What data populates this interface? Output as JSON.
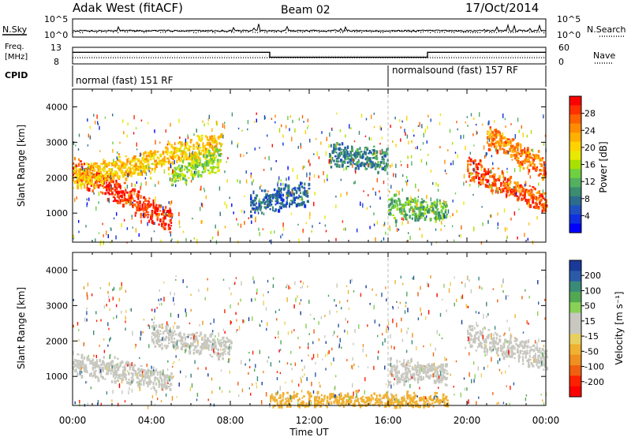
{
  "header": {
    "station": "Adak West (fitACF)",
    "beam": "Beam 02",
    "date": "17/Oct/2014"
  },
  "panels": {
    "noise": {
      "left_label": "N.Sky",
      "right_label": "N.Search",
      "left_ticks": [
        "10^5",
        "10^0"
      ],
      "right_ticks": [
        "10^5",
        "10^0"
      ]
    },
    "freq": {
      "left_label_1": "Freq.",
      "left_label_2": "[MHz]",
      "right_label": "Nave",
      "left_ticks": [
        "13",
        "8"
      ],
      "right_ticks": [
        "60",
        "0"
      ]
    },
    "cpid": {
      "label": "CPID",
      "mode_1": "normal (fast) 151 RF",
      "mode_2": "normalsound (fast) 157 RF"
    }
  },
  "colorbars": {
    "power": {
      "title": "Power [dB]",
      "ticks": [
        "28",
        "24",
        "20",
        "16",
        "12",
        "8",
        "4"
      ],
      "colors": [
        "#ff0000",
        "#ff3000",
        "#ff6000",
        "#ff8c00",
        "#ffb000",
        "#ffd200",
        "#e8e800",
        "#a8e000",
        "#6fd040",
        "#52b060",
        "#3c8c70",
        "#2c6c8c",
        "#2050c0",
        "#1030e0",
        "#0000ff"
      ]
    },
    "velocity": {
      "title": "Velocity [m s⁻¹]",
      "ticks": [
        "200",
        "100",
        "50",
        "15",
        "-15",
        "-50",
        "-100",
        "-200"
      ],
      "colors": [
        "#1a3a9a",
        "#2a5aa8",
        "#3a8a78",
        "#52a852",
        "#88d058",
        "#c8c8c0",
        "#c8c8c0",
        "#e8d060",
        "#f0b030",
        "#f09020",
        "#f06010",
        "#ff2000",
        "#ff0000"
      ]
    }
  },
  "axes": {
    "ylabel": "Slant Range [km]",
    "xlabel": "Time UT",
    "xticks": [
      "00:00",
      "04:00",
      "08:00",
      "12:00",
      "16:00",
      "20:00",
      "00:00"
    ],
    "yticks": [
      "4000",
      "3000",
      "2000",
      "1000"
    ]
  },
  "chart_data": [
    {
      "type": "line",
      "panel": "noise",
      "series": [
        {
          "name": "N.Sky"
        },
        {
          "name": "N.Search"
        }
      ],
      "y_scale": "log",
      "ylim": [
        1,
        100000
      ],
      "xlim": [
        0,
        24
      ]
    },
    {
      "type": "line",
      "panel": "frequency",
      "series": [
        {
          "name": "Freq.",
          "x": [
            0,
            10,
            10,
            18,
            18,
            24
          ],
          "y": [
            11.5,
            11.5,
            10.0,
            10.0,
            11.5,
            11.5
          ]
        },
        {
          "name": "Nave",
          "x": [
            0,
            24
          ],
          "y": [
            10,
            10
          ]
        }
      ],
      "ylim": [
        8,
        13
      ],
      "xlim": [
        0,
        24
      ]
    },
    {
      "type": "heatmap",
      "panel": "power",
      "xlabel": "Time UT",
      "ylabel": "Slant Range [km]",
      "xlim": [
        0,
        24
      ],
      "ylim": [
        180,
        4500
      ],
      "zlabel": "Power [dB]",
      "zlim": [
        0,
        30
      ],
      "features": [
        {
          "t_start": 0.0,
          "t_end": 5.0,
          "range_start": 2300,
          "range_end": 800,
          "z": 28
        },
        {
          "t_start": 0.0,
          "t_end": 7.5,
          "range_start": 2000,
          "range_end": 3000,
          "z": 20
        },
        {
          "t_start": 5.0,
          "t_end": 7.5,
          "range_start": 2100,
          "range_end": 2600,
          "z": 14
        },
        {
          "t_start": 9.0,
          "t_end": 12.0,
          "range_start": 1300,
          "range_end": 1600,
          "z": 6
        },
        {
          "t_start": 13.0,
          "t_end": 16.0,
          "range_start": 2700,
          "range_end": 2500,
          "z": 8
        },
        {
          "t_start": 16.0,
          "t_end": 19.0,
          "range_start": 1200,
          "range_end": 1100,
          "z": 12
        },
        {
          "t_start": 20.0,
          "t_end": 24.0,
          "range_start": 2300,
          "range_end": 1300,
          "z": 26
        },
        {
          "t_start": 21.0,
          "t_end": 24.0,
          "range_start": 3200,
          "range_end": 2300,
          "z": 24
        }
      ]
    },
    {
      "type": "heatmap",
      "panel": "velocity",
      "xlabel": "Time UT",
      "ylabel": "Slant Range [km]",
      "xlim": [
        0,
        24
      ],
      "ylim": [
        180,
        4500
      ],
      "zlabel": "Velocity [m s⁻¹]",
      "zlim": [
        -200,
        200
      ],
      "features": [
        {
          "t_start": 0.0,
          "t_end": 5.0,
          "range_start": 1400,
          "range_end": 900,
          "z": 0
        },
        {
          "t_start": 4.0,
          "t_end": 8.0,
          "range_start": 2200,
          "range_end": 1800,
          "z": 0
        },
        {
          "t_start": 16.0,
          "t_end": 19.0,
          "range_start": 1200,
          "range_end": 1100,
          "z": -10
        },
        {
          "t_start": 20.0,
          "t_end": 24.0,
          "range_start": 2200,
          "range_end": 1500,
          "z": 0
        },
        {
          "t_start": 10.0,
          "t_end": 19.0,
          "range_start": 250,
          "range_end": 250,
          "z": -60
        }
      ]
    }
  ]
}
